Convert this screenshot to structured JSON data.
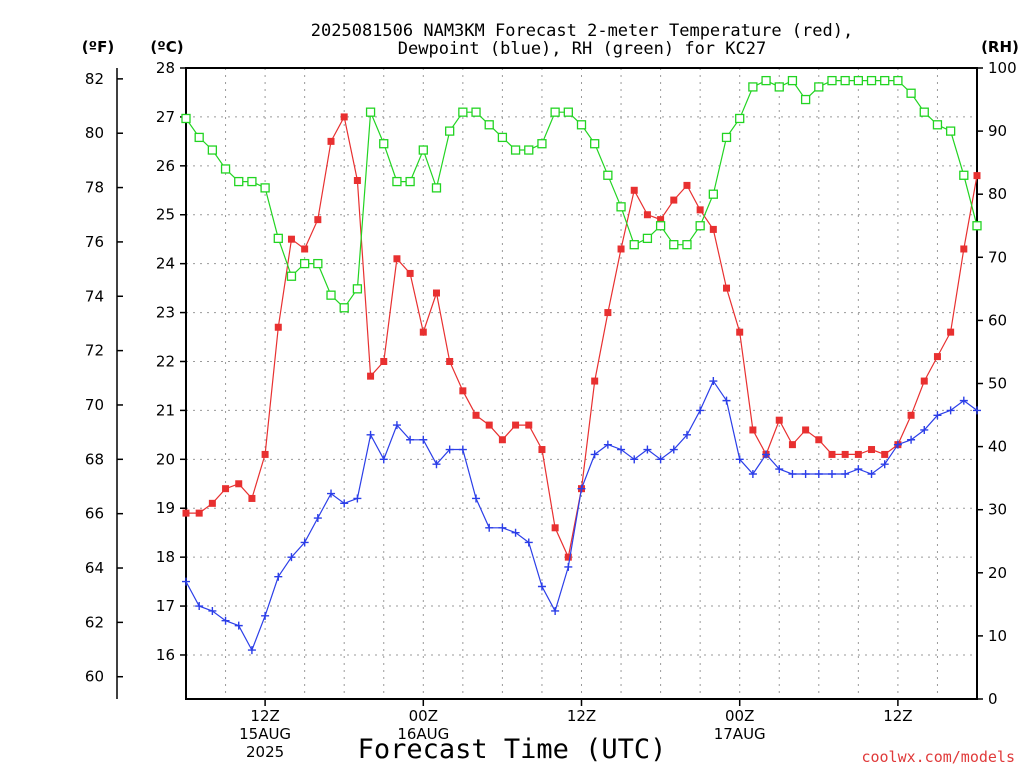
{
  "chart_data": {
    "type": "line",
    "title_line1": "2025081506 NAM3KM Forecast 2-meter Temperature (red),",
    "title_line2": "Dewpoint (blue), RH (green) for KC27",
    "left_outer_unit": "(ºF)",
    "left_inner_unit": "(ºC)",
    "right_unit": "(RH)",
    "xlabel": "Forecast Time (UTC)",
    "credit": "coolwx.com/models",
    "x_ticks": [
      {
        "label": "12Z",
        "date": "15AUG",
        "year": "2025",
        "hour": 6
      },
      {
        "label": "00Z",
        "date": "16AUG",
        "year": "",
        "hour": 18
      },
      {
        "label": "12Z",
        "date": "",
        "year": "",
        "hour": 30
      },
      {
        "label": "00Z",
        "date": "17AUG",
        "year": "",
        "hour": 42
      },
      {
        "label": "12Z",
        "date": "",
        "year": "",
        "hour": 54
      }
    ],
    "x_hours": [
      0,
      1,
      2,
      3,
      4,
      5,
      6,
      7,
      8,
      9,
      10,
      11,
      12,
      13,
      14,
      15,
      16,
      17,
      18,
      19,
      20,
      21,
      22,
      23,
      24,
      25,
      26,
      27,
      28,
      29,
      30,
      31,
      32,
      33,
      34,
      35,
      36,
      37,
      38,
      39,
      40,
      41,
      42,
      43,
      44,
      45,
      46,
      47,
      48,
      49,
      50,
      51,
      52,
      53,
      54,
      55,
      56,
      57,
      58,
      59,
      60
    ],
    "xlim": [
      0,
      60
    ],
    "fahrenheit_axis": {
      "ticks": [
        60,
        62,
        64,
        66,
        68,
        70,
        72,
        74,
        76,
        78,
        80,
        82
      ]
    },
    "celsius_axis": {
      "ylim": [
        15.1,
        28.0
      ],
      "ticks": [
        16,
        17,
        18,
        19,
        20,
        21,
        22,
        23,
        24,
        25,
        26,
        27,
        28
      ]
    },
    "rh_axis": {
      "ylim": [
        0,
        100
      ],
      "ticks": [
        0,
        10,
        20,
        30,
        40,
        50,
        60,
        70,
        80,
        90,
        100
      ]
    },
    "grid": true,
    "series": [
      {
        "name": "Temperature",
        "color": "#e83030",
        "marker": "filled-square",
        "axis": "celsius",
        "values": [
          18.9,
          18.9,
          19.1,
          19.4,
          19.5,
          19.2,
          20.1,
          22.7,
          24.5,
          24.3,
          24.9,
          26.5,
          27.0,
          25.7,
          21.7,
          22.0,
          24.1,
          23.8,
          22.6,
          23.4,
          22.0,
          21.4,
          20.9,
          20.7,
          20.4,
          20.7,
          20.7,
          20.2,
          18.6,
          18.0,
          19.4,
          21.6,
          23.0,
          24.3,
          25.5,
          25.0,
          24.9,
          25.3,
          25.6,
          25.1,
          24.7,
          23.5,
          22.6,
          20.6,
          20.1,
          20.8,
          20.3,
          20.6,
          20.4,
          20.1,
          20.1,
          20.1,
          20.2,
          20.1,
          20.3,
          20.9,
          21.6,
          22.1,
          22.6,
          24.3,
          25.8
        ]
      },
      {
        "name": "Dewpoint",
        "color": "#2b3ee8",
        "marker": "plus",
        "axis": "celsius",
        "values": [
          17.5,
          17.0,
          16.9,
          16.7,
          16.6,
          16.1,
          16.8,
          17.6,
          18.0,
          18.3,
          18.8,
          19.3,
          19.1,
          19.2,
          20.5,
          20.0,
          20.7,
          20.4,
          20.4,
          19.9,
          20.2,
          20.2,
          19.2,
          18.6,
          18.6,
          18.5,
          18.3,
          17.4,
          16.9,
          17.8,
          19.4,
          20.1,
          20.3,
          20.2,
          20.0,
          20.2,
          20.0,
          20.2,
          20.5,
          21.0,
          21.6,
          21.2,
          20.0,
          19.7,
          20.1,
          19.8,
          19.7,
          19.7,
          19.7,
          19.7,
          19.7,
          19.8,
          19.7,
          19.9,
          20.3,
          20.4,
          20.6,
          20.9,
          21.0,
          21.2,
          21.0
        ]
      },
      {
        "name": "RH",
        "color": "#22d422",
        "marker": "open-square",
        "axis": "rh",
        "values": [
          92,
          89,
          87,
          84,
          82,
          82,
          81,
          73,
          67,
          69,
          69,
          64,
          62,
          65,
          93,
          88,
          82,
          82,
          87,
          81,
          90,
          93,
          93,
          91,
          89,
          87,
          87,
          88,
          93,
          93,
          91,
          88,
          83,
          78,
          72,
          73,
          75,
          72,
          72,
          75,
          80,
          89,
          92,
          97,
          98,
          97,
          98,
          95,
          97,
          98,
          98,
          98,
          98,
          98,
          98,
          96,
          93,
          91,
          90,
          83,
          75
        ]
      }
    ]
  }
}
